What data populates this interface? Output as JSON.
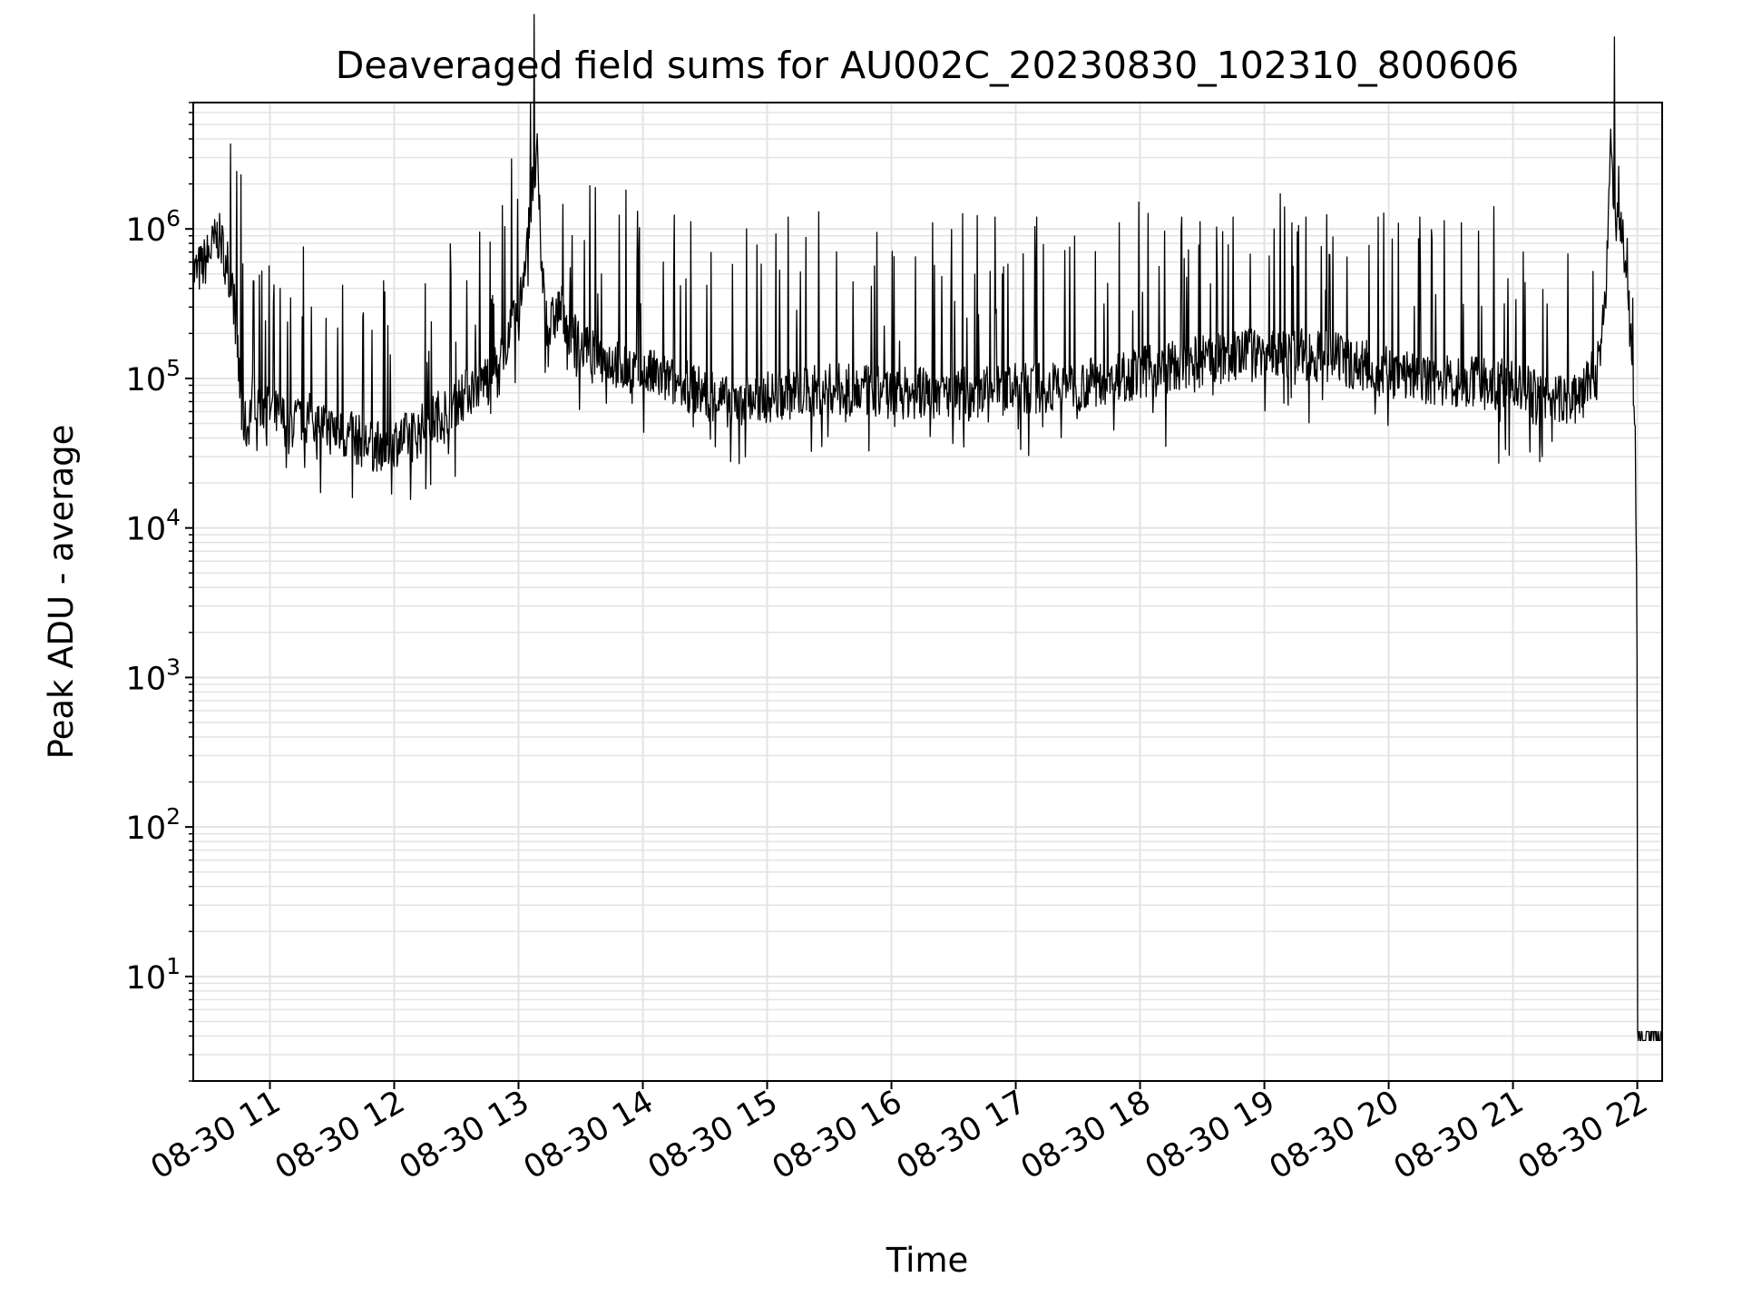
{
  "chart_data": {
    "type": "line",
    "title": "Deaveraged field sums for AU002C_20230830_102310_800606",
    "xlabel": "Time",
    "ylabel": "Peak ADU - average",
    "yscale": "log",
    "ylim": [
      2,
      7000000
    ],
    "xlim": [
      "2023-08-30 10:23",
      "2023-08-30 22:12"
    ],
    "grid": true,
    "line_color": "#000000",
    "grid_color": "#e3e3e3",
    "x_ticks": [
      {
        "value": "2023-08-30 11:00",
        "label": "08-30 11"
      },
      {
        "value": "2023-08-30 12:00",
        "label": "08-30 12"
      },
      {
        "value": "2023-08-30 13:00",
        "label": "08-30 13"
      },
      {
        "value": "2023-08-30 14:00",
        "label": "08-30 14"
      },
      {
        "value": "2023-08-30 15:00",
        "label": "08-30 15"
      },
      {
        "value": "2023-08-30 16:00",
        "label": "08-30 16"
      },
      {
        "value": "2023-08-30 17:00",
        "label": "08-30 17"
      },
      {
        "value": "2023-08-30 18:00",
        "label": "08-30 18"
      },
      {
        "value": "2023-08-30 19:00",
        "label": "08-30 19"
      },
      {
        "value": "2023-08-30 20:00",
        "label": "08-30 20"
      },
      {
        "value": "2023-08-30 21:00",
        "label": "08-30 21"
      },
      {
        "value": "2023-08-30 22:00",
        "label": "08-30 22"
      }
    ],
    "y_ticks": [
      {
        "value": 10,
        "base": "10",
        "exp": "1"
      },
      {
        "value": 100,
        "base": "10",
        "exp": "2"
      },
      {
        "value": 1000,
        "base": "10",
        "exp": "3"
      },
      {
        "value": 10000,
        "base": "10",
        "exp": "4"
      },
      {
        "value": 100000,
        "base": "10",
        "exp": "5"
      },
      {
        "value": 1000000,
        "base": "10",
        "exp": "6"
      }
    ],
    "series": [
      {
        "x": [
          "2023-08-30 10:23",
          "2023-08-30 10:27",
          "2023-08-30 10:31",
          "2023-08-30 10:35",
          "2023-08-30 10:39",
          "2023-08-30 10:42",
          "2023-08-30 10:44",
          "2023-08-30 10:46",
          "2023-08-30 10:49",
          "2023-08-30 10:52",
          "2023-08-30 10:55",
          "2023-08-30 11:00",
          "2023-08-30 11:10",
          "2023-08-30 11:20",
          "2023-08-30 11:30",
          "2023-08-30 11:40",
          "2023-08-30 11:50",
          "2023-08-30 12:00",
          "2023-08-30 12:10",
          "2023-08-30 12:20",
          "2023-08-30 12:30",
          "2023-08-30 12:40",
          "2023-08-30 12:50",
          "2023-08-30 12:55",
          "2023-08-30 13:00",
          "2023-08-30 13:05",
          "2023-08-30 13:09",
          "2023-08-30 13:11",
          "2023-08-30 13:14",
          "2023-08-30 13:17",
          "2023-08-30 13:20",
          "2023-08-30 13:30",
          "2023-08-30 13:45",
          "2023-08-30 14:00",
          "2023-08-30 14:20",
          "2023-08-30 14:40",
          "2023-08-30 15:00",
          "2023-08-30 15:30",
          "2023-08-30 16:00",
          "2023-08-30 16:30",
          "2023-08-30 17:00",
          "2023-08-30 17:30",
          "2023-08-30 18:00",
          "2023-08-30 18:30",
          "2023-08-30 19:00",
          "2023-08-30 19:30",
          "2023-08-30 20:00",
          "2023-08-30 20:30",
          "2023-08-30 21:00",
          "2023-08-30 21:20",
          "2023-08-30 21:30",
          "2023-08-30 21:40",
          "2023-08-30 21:45",
          "2023-08-30 21:47",
          "2023-08-30 21:50",
          "2023-08-30 21:53",
          "2023-08-30 21:56",
          "2023-08-30 21:59",
          "2023-08-30 22:00",
          "2023-08-30 22:02",
          "2023-08-30 22:05",
          "2023-08-30 22:08",
          "2023-08-30 22:12"
        ],
        "y": [
          500000,
          550000,
          700000,
          900000,
          650000,
          400000,
          200000,
          60000,
          45000,
          80000,
          70000,
          60000,
          50000,
          55000,
          45000,
          40000,
          35000,
          38000,
          42000,
          55000,
          70000,
          90000,
          120000,
          200000,
          250000,
          1200000,
          3000000,
          600000,
          200000,
          250000,
          300000,
          160000,
          130000,
          110000,
          90000,
          70000,
          75000,
          85000,
          80000,
          80000,
          85000,
          90000,
          110000,
          130000,
          150000,
          140000,
          110000,
          95000,
          90000,
          70000,
          75000,
          110000,
          350000,
          3500000,
          1100000,
          800000,
          300000,
          50000,
          1000,
          4,
          4,
          4,
          4
        ]
      }
    ],
    "spikes": {
      "description_values": "upward excursions of the noisy series",
      "x": [
        "2023-08-30 10:46",
        "2023-08-30 10:52",
        "2023-08-30 11:05",
        "2023-08-30 11:20",
        "2023-08-30 11:35",
        "2023-08-30 11:55",
        "2023-08-30 12:15",
        "2023-08-30 12:35",
        "2023-08-30 13:25",
        "2023-08-30 13:40",
        "2023-08-30 14:10",
        "2023-08-30 14:50",
        "2023-08-30 15:10",
        "2023-08-30 15:25",
        "2023-08-30 16:20",
        "2023-08-30 16:50",
        "2023-08-30 17:10",
        "2023-08-30 17:50",
        "2023-08-30 18:20",
        "2023-08-30 18:45",
        "2023-08-30 19:20",
        "2023-08-30 19:55",
        "2023-08-30 20:15",
        "2023-08-30 20:35",
        "2023-08-30 21:05"
      ],
      "y": [
        2300000,
        450000,
        400000,
        300000,
        420000,
        450000,
        430000,
        450000,
        550000,
        500000,
        600000,
        1000000,
        1200000,
        1300000,
        1100000,
        1200000,
        1200000,
        1100000,
        1200000,
        1200000,
        1200000,
        1200000,
        1200000,
        1100000,
        700000
      ]
    }
  }
}
